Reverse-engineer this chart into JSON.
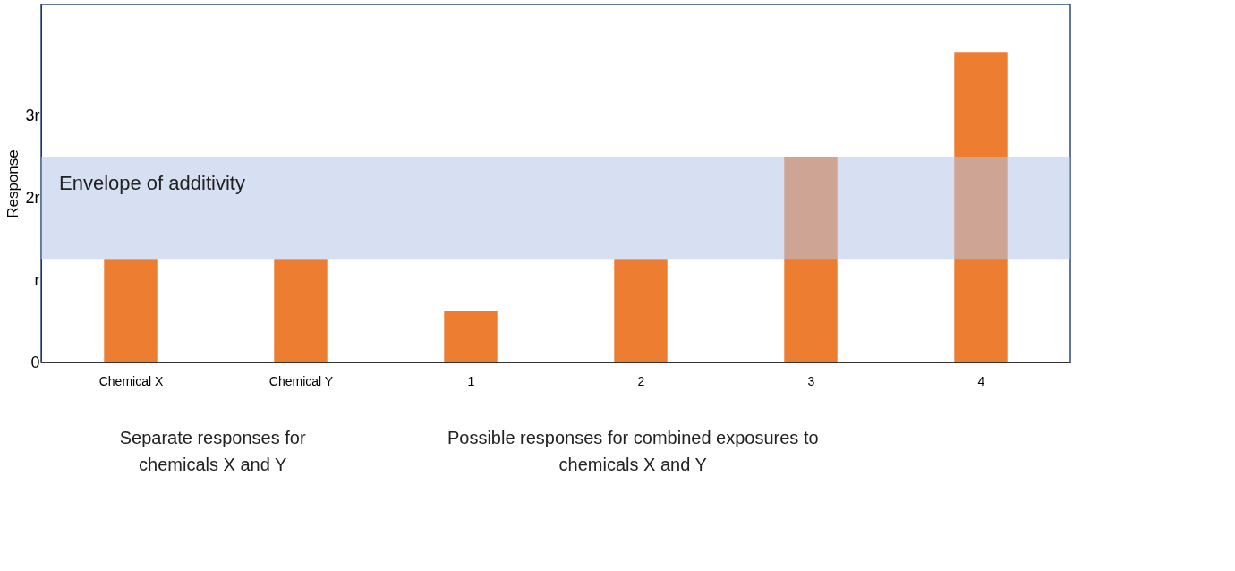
{
  "chart_data": {
    "type": "bar",
    "ylabel": "Response",
    "categories": [
      "Chemical X",
      "Chemical Y",
      "1",
      "2",
      "3",
      "4"
    ],
    "values": [
      1.26,
      1.26,
      0.62,
      1.26,
      2.5,
      3.77
    ],
    "color": "#ed7d31",
    "ylim": [
      0,
      4.35
    ],
    "yticks": [
      {
        "value": 0,
        "label": "0"
      },
      {
        "value": 1,
        "label": "r"
      },
      {
        "value": 2,
        "label": "2r"
      },
      {
        "value": 3,
        "label": "3r"
      }
    ],
    "grid": false,
    "bands": [
      {
        "axis": "y",
        "from": 1.26,
        "to": 2.5,
        "label": "Envelope of additivity",
        "color": "#b4c7e7"
      }
    ],
    "annotations": [
      "Separate responses for chemicals X and Y",
      "Possible responses for combined exposures to chemicals X and Y"
    ]
  }
}
